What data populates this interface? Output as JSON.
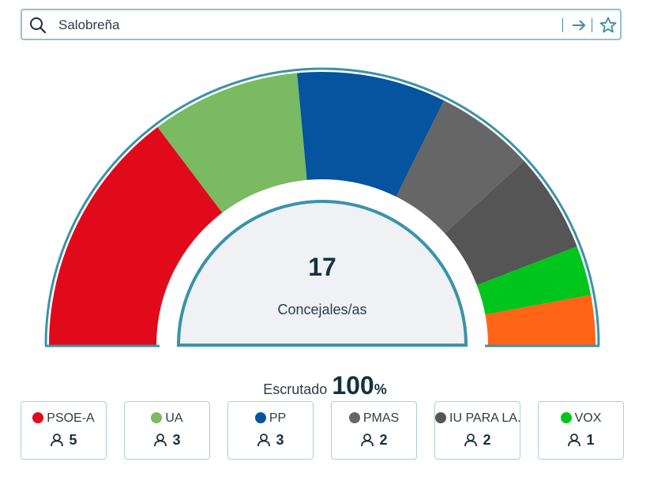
{
  "search": {
    "value": "Salobreña",
    "icons": [
      "search-icon",
      "arrow-right-icon",
      "star-icon"
    ]
  },
  "chart_data": {
    "type": "hemicycle",
    "total_seats": 17,
    "total_label": "Concejales/as",
    "series": [
      {
        "name": "PSOE-A",
        "seats": 5,
        "color": "#e10a1b"
      },
      {
        "name": "UA",
        "seats": 3,
        "color": "#7aba62"
      },
      {
        "name": "PP",
        "seats": 3,
        "color": "#0653a0"
      },
      {
        "name": "PMAS",
        "seats": 2,
        "color": "#666666"
      },
      {
        "name": "IU PARA LA...",
        "seats": 2,
        "color": "#555555"
      },
      {
        "name": "VOX",
        "seats": 1,
        "color": "#00c51c"
      },
      {
        "name": "",
        "seats": 1,
        "color": "#ff6417"
      }
    ],
    "outline_color": "#3a93a8",
    "inner_fill": "#eff1f4"
  },
  "scrutiny": {
    "label": "Escrutado",
    "value": "100",
    "unit": "%"
  },
  "cards": [
    {
      "name": "PSOE-A",
      "seats": "5",
      "color": "#e10a1b"
    },
    {
      "name": "UA",
      "seats": "3",
      "color": "#7aba62"
    },
    {
      "name": "PP",
      "seats": "3",
      "color": "#0653a0"
    },
    {
      "name": "PMAS",
      "seats": "2",
      "color": "#666666"
    },
    {
      "name": "IU PARA LA...",
      "seats": "2",
      "color": "#555555"
    },
    {
      "name": "VOX",
      "seats": "1",
      "color": "#00c51c"
    }
  ],
  "icons": {
    "card": "user-icon"
  }
}
